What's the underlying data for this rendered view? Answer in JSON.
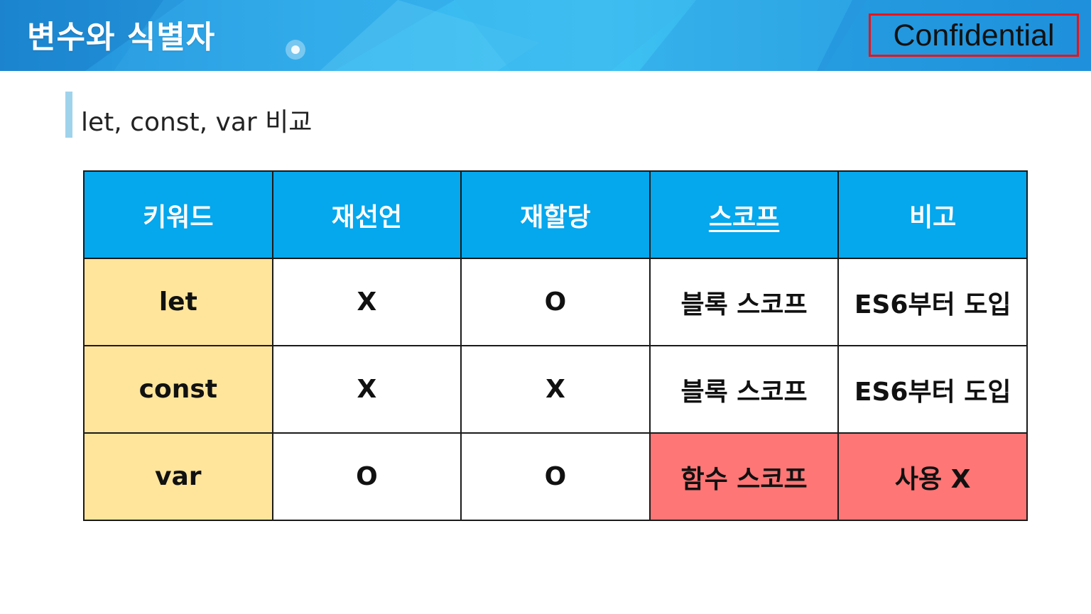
{
  "header": {
    "title": "변수와 식별자",
    "badge": "Confidential"
  },
  "section": {
    "heading": "let, const, var 비교"
  },
  "table": {
    "columns": [
      "키워드",
      "재선언",
      "재할당",
      "스코프",
      "비고"
    ],
    "rows": [
      [
        "let",
        "X",
        "O",
        "블록 스코프",
        "ES6부터 도입"
      ],
      [
        "const",
        "X",
        "X",
        "블록 스코프",
        "ES6부터 도입"
      ],
      [
        "var",
        "O",
        "O",
        "함수 스코프",
        "사용 X"
      ]
    ]
  },
  "colors": {
    "header_blue": "#05a7ed",
    "keyword_yellow": "#ffe59b",
    "warning_red": "#ff7676",
    "badge_border": "#e8141b"
  }
}
